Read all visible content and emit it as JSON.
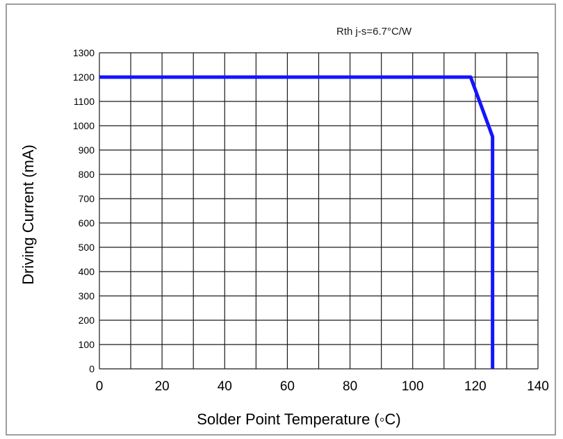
{
  "chart_data": {
    "type": "line",
    "title": "",
    "annotation": "Rth j-s=6.7°C/W",
    "xlabel": "Solder Point Temperature (◦C)",
    "ylabel": "Driving Current (mA)",
    "xlim": [
      0,
      140
    ],
    "ylim": [
      0,
      1300
    ],
    "x_ticks": [
      0,
      20,
      40,
      60,
      80,
      100,
      120,
      140
    ],
    "y_ticks": [
      0,
      100,
      200,
      300,
      400,
      500,
      600,
      700,
      800,
      900,
      1000,
      1100,
      1200,
      1300
    ],
    "x_tick_labels": [
      "0",
      "20",
      "40",
      "60",
      "80",
      "100",
      "120",
      "140"
    ],
    "y_tick_labels": [
      "0",
      "100",
      "200",
      "300",
      "400",
      "500",
      "600",
      "700",
      "800",
      "900",
      "1000",
      "1100",
      "1200",
      "1300"
    ],
    "grid": true,
    "series": [
      {
        "color": "#1414ff",
        "points": [
          {
            "x": 0,
            "y": 1200
          },
          {
            "x": 118.5,
            "y": 1200
          },
          {
            "x": 125.5,
            "y": 955
          },
          {
            "x": 125.5,
            "y": 0
          }
        ]
      }
    ]
  }
}
